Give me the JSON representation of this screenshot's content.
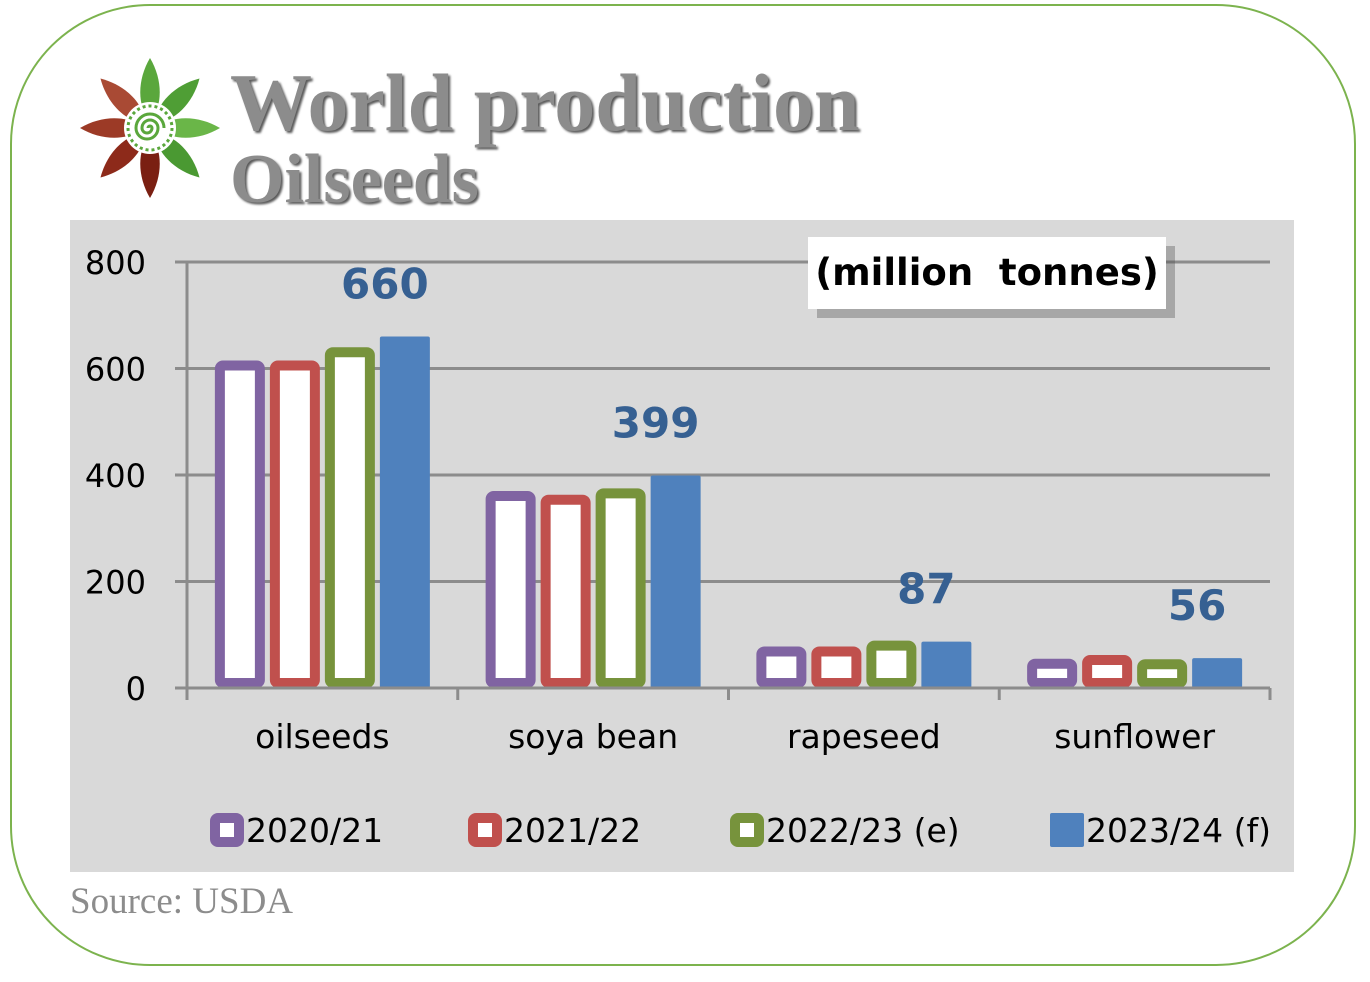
{
  "header": {
    "title_line1": "World production",
    "title_line2": "Oilseeds"
  },
  "source": "Source: USDA",
  "colors": {
    "series": [
      "#8064a2",
      "#c0504d",
      "#77933c",
      "#4f81bd"
    ],
    "value_label": "#366092",
    "plot_bg": "#d9d9d9",
    "gridline": "#8c8c8c",
    "frame": "#7cb34e"
  },
  "logo": {
    "icon": "flower-logo-icon"
  },
  "chart_data": {
    "type": "bar",
    "unit_box": "(million  tonnes)",
    "categories": [
      "oilseeds",
      "soya bean",
      "rapeseed",
      "sunflower"
    ],
    "series": [
      {
        "name": "2020/21",
        "values": [
          615,
          370,
          78,
          55
        ],
        "style": "outlined"
      },
      {
        "name": "2021/22",
        "values": [
          615,
          363,
          78,
          62
        ],
        "style": "outlined"
      },
      {
        "name": "2022/23 (e)",
        "values": [
          640,
          375,
          89,
          54
        ],
        "style": "outlined"
      },
      {
        "name": "2023/24 (f)",
        "values": [
          660,
          399,
          87,
          56
        ],
        "style": "solid"
      }
    ],
    "value_labels": [
      {
        "category": "oilseeds",
        "text": "660"
      },
      {
        "category": "soya bean",
        "text": "399"
      },
      {
        "category": "rapeseed",
        "text": "87"
      },
      {
        "category": "sunflower",
        "text": "56"
      }
    ],
    "y_ticks": [
      "0",
      "200",
      "400",
      "600",
      "800"
    ],
    "ylim": [
      0,
      800
    ],
    "grid": true,
    "legend_position": "bottom"
  }
}
